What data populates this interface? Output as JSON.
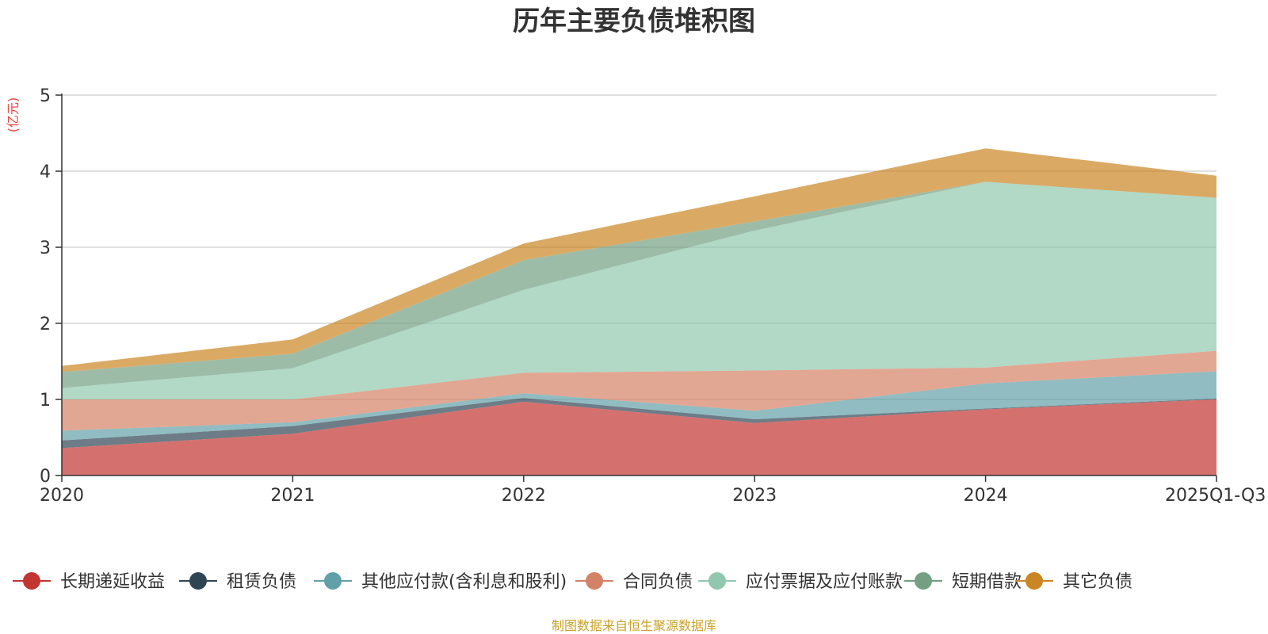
{
  "chart_data": {
    "type": "area",
    "stacked": true,
    "title": "历年主要负债堆积图",
    "unit_label": "(亿元)",
    "categories": [
      "2020",
      "2021",
      "2022",
      "2023",
      "2024",
      "2025Q1-Q3"
    ],
    "ylim": [
      0,
      5
    ],
    "y_ticks": [
      "0",
      "1",
      "2",
      "3",
      "4",
      "5"
    ],
    "grid": true,
    "legend_position": "bottom",
    "series": [
      {
        "name": "长期递延收益",
        "color": "#c23531",
        "values": [
          0.36,
          0.55,
          0.97,
          0.69,
          0.87,
          1.0
        ]
      },
      {
        "name": "租赁负债",
        "color": "#2f4554",
        "values": [
          0.1,
          0.1,
          0.05,
          0.05,
          0.01,
          0.01
        ]
      },
      {
        "name": "其他应付款(含利息和股利)",
        "color": "#61a0a8",
        "values": [
          0.13,
          0.05,
          0.06,
          0.11,
          0.33,
          0.36
        ]
      },
      {
        "name": "合同负债",
        "color": "#d48265",
        "values": [
          0.41,
          0.3,
          0.27,
          0.53,
          0.21,
          0.27
        ]
      },
      {
        "name": "应付票据及应付账款",
        "color": "#91c7ae",
        "values": [
          0.15,
          0.41,
          1.09,
          1.84,
          2.44,
          2.01
        ]
      },
      {
        "name": "短期借款",
        "color": "#749f83",
        "values": [
          0.21,
          0.19,
          0.39,
          0.12,
          0.0,
          0.0
        ]
      },
      {
        "name": "其它负债",
        "color": "#ca8622",
        "values": [
          0.08,
          0.19,
          0.22,
          0.33,
          0.44,
          0.29
        ]
      }
    ]
  },
  "footer": {
    "source": "制图数据来自恒生聚源数据库"
  }
}
